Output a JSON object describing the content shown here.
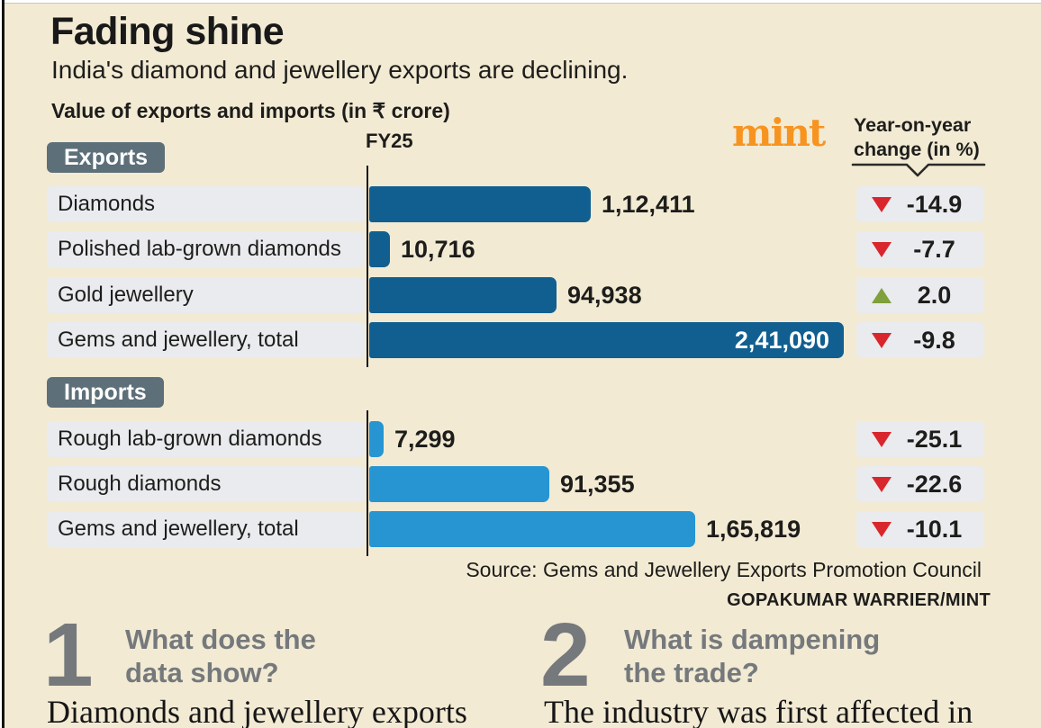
{
  "page": {
    "title": "Fading shine",
    "subtitle": "India's diamond and jewellery exports are declining.",
    "chart_unit_label": "Value of exports and imports (in ₹ crore)",
    "brand_logo": "mint",
    "yoy_header": [
      "Year-on-year",
      "change (in %)"
    ],
    "fiscal_year_label": "FY25",
    "source": "Source: Gems and Jewellery Exports Promotion Council",
    "credit": "GOPAKUMAR WARRIER/MINT"
  },
  "chart_data": {
    "type": "bar",
    "orientation": "horizontal",
    "title": "Fading shine",
    "subtitle": "India's diamond and jewellery exports are declining.",
    "unit": "₹ crore",
    "x_axis_label": "FY25",
    "legend_note": "Year-on-year change (in %)",
    "max_value": 241090,
    "groups": [
      {
        "label": "Exports",
        "rows": [
          {
            "category": "Diamonds",
            "value": 112411,
            "value_label": "1,12,411",
            "yoy": -14.9,
            "yoy_label": "-14.9"
          },
          {
            "category": "Polished lab-grown diamonds",
            "value": 10716,
            "value_label": "10,716",
            "yoy": -7.7,
            "yoy_label": "-7.7"
          },
          {
            "category": "Gold jewellery",
            "value": 94938,
            "value_label": "94,938",
            "yoy": 2.0,
            "yoy_label": "2.0"
          },
          {
            "category": "Gems and jewellery, total",
            "value": 241090,
            "value_label": "2,41,090",
            "yoy": -9.8,
            "yoy_label": "-9.8"
          }
        ]
      },
      {
        "label": "Imports",
        "rows": [
          {
            "category": "Rough lab-grown diamonds",
            "value": 7299,
            "value_label": "7,299",
            "yoy": -25.1,
            "yoy_label": "-25.1"
          },
          {
            "category": "Rough diamonds",
            "value": 91355,
            "value_label": "91,355",
            "yoy": -22.6,
            "yoy_label": "-22.6"
          },
          {
            "category": "Gems and jewellery, total",
            "value": 165819,
            "value_label": "1,65,819",
            "yoy": -10.1,
            "yoy_label": "-10.1"
          }
        ]
      }
    ]
  },
  "questions": [
    {
      "number": "1",
      "heading": "What does the\ndata show?",
      "body": "Diamonds and jewellery exports"
    },
    {
      "number": "2",
      "heading": "What is dampening\nthe trade?",
      "body": "The industry was first affected in"
    }
  ],
  "colors": {
    "background": "#f2ead3",
    "export_bar": "#115f90",
    "import_bar": "#2795d2",
    "row_label_bg": "#e9ebee",
    "badge_bg": "#5d6f79",
    "negative": "#d8262c",
    "positive": "#7fa03c",
    "brand_orange": "#f79420",
    "heading_gray": "#75797c",
    "text": "#1d1d1b"
  }
}
